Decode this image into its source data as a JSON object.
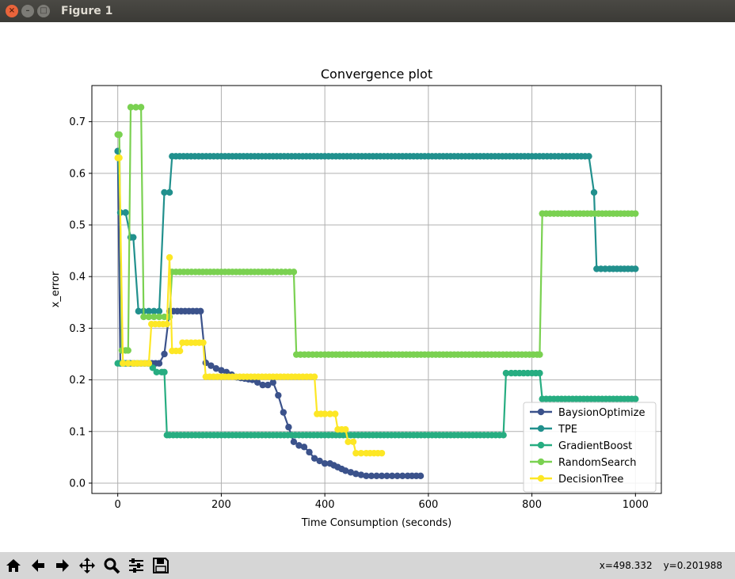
{
  "window": {
    "title": "Figure 1"
  },
  "toolbar": {
    "icons": [
      "home-icon",
      "back-icon",
      "forward-icon",
      "pan-icon",
      "zoom-icon",
      "configure-subplots-icon",
      "save-icon"
    ],
    "coord_x": "x=498.332",
    "coord_y": "y=0.201988"
  },
  "chart_data": {
    "type": "line",
    "title": "Convergence plot",
    "xlabel": "Time Consumption (seconds)",
    "ylabel": "x_error",
    "xlim": [
      -50,
      1050
    ],
    "ylim": [
      -0.02,
      0.77
    ],
    "xticks": [
      0,
      200,
      400,
      600,
      800,
      1000
    ],
    "xtick_labels": [
      "0",
      "200",
      "400",
      "600",
      "800",
      "1000"
    ],
    "yticks": [
      0.0,
      0.1,
      0.2,
      0.3,
      0.4,
      0.5,
      0.6,
      0.7
    ],
    "ytick_labels": [
      "0.0",
      "0.1",
      "0.2",
      "0.3",
      "0.4",
      "0.5",
      "0.6",
      "0.7"
    ],
    "grid": true,
    "legend_position": "lower-right",
    "series": [
      {
        "name": "BaysionOptimize",
        "color": "#3b528b",
        "x": [
          0,
          5,
          10,
          80,
          90,
          100,
          130,
          160,
          170,
          190,
          210,
          230,
          260,
          280,
          290,
          300,
          310,
          320,
          340,
          350,
          360,
          370,
          380,
          400,
          410,
          440,
          460,
          480,
          500,
          520,
          540,
          560,
          585
        ],
        "y": [
          0.643,
          0.232,
          0.232,
          0.232,
          0.25,
          0.333,
          0.333,
          0.333,
          0.233,
          0.222,
          0.215,
          0.205,
          0.2,
          0.19,
          0.19,
          0.195,
          0.17,
          0.137,
          0.08,
          0.073,
          0.07,
          0.06,
          0.048,
          0.038,
          0.038,
          0.024,
          0.018,
          0.014,
          0.014,
          0.014,
          0.014,
          0.014,
          0.014
        ]
      },
      {
        "name": "TPE",
        "color": "#21908d",
        "x": [
          0,
          5,
          15,
          25,
          30,
          40,
          50,
          60,
          70,
          80,
          90,
          100,
          105,
          200,
          300,
          400,
          500,
          600,
          700,
          800,
          910,
          920,
          925,
          950,
          1000
        ],
        "y": [
          0.643,
          0.524,
          0.524,
          0.476,
          0.476,
          0.333,
          0.333,
          0.333,
          0.333,
          0.333,
          0.563,
          0.563,
          0.633,
          0.633,
          0.633,
          0.633,
          0.633,
          0.633,
          0.633,
          0.633,
          0.633,
          0.563,
          0.415,
          0.415,
          0.415
        ]
      },
      {
        "name": "GradientBoost",
        "color": "#27ad81",
        "x": [
          0,
          5,
          30,
          60,
          75,
          85,
          90,
          95,
          100,
          200,
          300,
          400,
          500,
          600,
          700,
          745,
          750,
          760,
          800,
          815,
          820,
          850,
          900,
          950,
          1000
        ],
        "y": [
          0.232,
          0.232,
          0.232,
          0.232,
          0.215,
          0.215,
          0.215,
          0.093,
          0.093,
          0.093,
          0.093,
          0.093,
          0.093,
          0.093,
          0.093,
          0.093,
          0.213,
          0.213,
          0.213,
          0.213,
          0.163,
          0.163,
          0.163,
          0.163,
          0.163
        ]
      },
      {
        "name": "RandomSearch",
        "color": "#7ad151",
        "x": [
          0,
          3,
          8,
          15,
          20,
          25,
          35,
          45,
          50,
          60,
          70,
          80,
          90,
          100,
          105,
          150,
          200,
          250,
          300,
          340,
          345,
          400,
          500,
          600,
          700,
          810,
          815,
          820,
          850,
          900,
          950,
          1000
        ],
        "y": [
          0.675,
          0.675,
          0.257,
          0.257,
          0.257,
          0.728,
          0.728,
          0.728,
          0.322,
          0.322,
          0.322,
          0.322,
          0.322,
          0.322,
          0.409,
          0.409,
          0.409,
          0.409,
          0.409,
          0.409,
          0.249,
          0.249,
          0.249,
          0.249,
          0.249,
          0.249,
          0.249,
          0.522,
          0.522,
          0.522,
          0.522,
          0.522
        ]
      },
      {
        "name": "DecisionTree",
        "color": "#fde725",
        "x": [
          0,
          3,
          10,
          30,
          60,
          65,
          80,
          95,
          100,
          105,
          120,
          125,
          150,
          165,
          170,
          200,
          250,
          300,
          350,
          380,
          385,
          400,
          420,
          425,
          440,
          445,
          455,
          460,
          480,
          510
        ],
        "y": [
          0.63,
          0.63,
          0.232,
          0.232,
          0.232,
          0.308,
          0.308,
          0.308,
          0.437,
          0.256,
          0.256,
          0.272,
          0.272,
          0.272,
          0.206,
          0.206,
          0.206,
          0.206,
          0.206,
          0.206,
          0.134,
          0.134,
          0.134,
          0.104,
          0.104,
          0.08,
          0.08,
          0.058,
          0.058,
          0.058
        ]
      }
    ]
  }
}
